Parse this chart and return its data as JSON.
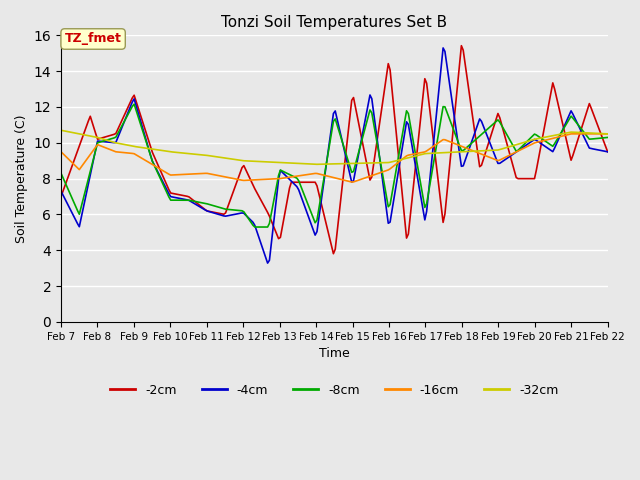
{
  "title": "Tonzi Soil Temperatures Set B",
  "xlabel": "Time",
  "ylabel": "Soil Temperature (C)",
  "ylim": [
    0,
    16
  ],
  "yticks": [
    0,
    2,
    4,
    6,
    8,
    10,
    12,
    14,
    16
  ],
  "x_label_days": [
    7,
    8,
    9,
    10,
    11,
    12,
    13,
    14,
    15,
    16,
    17,
    18,
    19,
    20,
    21,
    22
  ],
  "colors": {
    "-2cm": "#cc0000",
    "-4cm": "#0000cc",
    "-8cm": "#00aa00",
    "-16cm": "#ff8800",
    "-32cm": "#cccc00"
  },
  "annotation_text": "TZ_fmet",
  "annotation_color": "#cc0000",
  "annotation_bg": "#ffffcc",
  "grid_color": "#ffffff",
  "bg_color": "#e8e8e8",
  "linewidth": 1.2,
  "xp_2cm": [
    0,
    0.8,
    1.0,
    1.5,
    2.0,
    2.5,
    3.0,
    3.5,
    4.0,
    4.5,
    5.0,
    5.3,
    5.7,
    6.0,
    6.3,
    7.0,
    7.5,
    8.0,
    8.5,
    9.0,
    9.5,
    10.0,
    10.5,
    11.0,
    11.5,
    12.0,
    12.5,
    13.0,
    13.5,
    14.0,
    14.5,
    15.0
  ],
  "yp_2cm": [
    7.0,
    11.5,
    10.2,
    10.5,
    12.7,
    9.5,
    7.2,
    7.0,
    6.2,
    6.0,
    8.8,
    7.5,
    6.0,
    4.5,
    7.8,
    7.8,
    3.6,
    12.8,
    7.7,
    14.7,
    4.3,
    13.9,
    5.3,
    15.7,
    8.5,
    11.7,
    8.0,
    8.0,
    13.4,
    9.0,
    12.2,
    9.5
  ],
  "xp_4cm": [
    0,
    0.5,
    1.0,
    1.5,
    2.0,
    2.5,
    3.0,
    3.5,
    4.0,
    4.5,
    5.0,
    5.3,
    5.7,
    6.0,
    6.5,
    7.0,
    7.5,
    8.0,
    8.5,
    9.0,
    9.5,
    10.0,
    10.5,
    11.0,
    11.5,
    12.0,
    13.0,
    13.5,
    14.0,
    14.5,
    15.0
  ],
  "yp_4cm": [
    7.3,
    5.3,
    10.1,
    10.0,
    12.5,
    9.0,
    7.0,
    6.8,
    6.2,
    5.9,
    6.1,
    5.5,
    3.1,
    8.5,
    7.5,
    4.7,
    12.0,
    7.6,
    12.9,
    5.2,
    11.4,
    5.5,
    15.6,
    8.5,
    11.4,
    8.8,
    10.2,
    9.5,
    11.8,
    9.7,
    9.5
  ],
  "xp_8cm": [
    0,
    0.5,
    1.0,
    1.5,
    2.0,
    2.5,
    3.0,
    3.5,
    4.0,
    4.5,
    5.0,
    5.3,
    5.7,
    6.0,
    6.5,
    7.0,
    7.5,
    8.0,
    8.5,
    9.0,
    9.5,
    10.0,
    10.5,
    11.0,
    12.0,
    12.5,
    13.0,
    13.5,
    14.0,
    14.5,
    15.0
  ],
  "yp_8cm": [
    8.3,
    6.0,
    10.0,
    10.3,
    12.2,
    9.0,
    6.8,
    6.8,
    6.6,
    6.3,
    6.2,
    5.3,
    5.3,
    8.5,
    8.0,
    5.4,
    11.5,
    8.2,
    12.0,
    6.2,
    12.0,
    6.2,
    12.2,
    9.5,
    11.3,
    9.5,
    10.5,
    9.8,
    11.5,
    10.2,
    10.3
  ],
  "xp_16cm": [
    0,
    0.5,
    1.0,
    1.5,
    2.0,
    3.0,
    4.0,
    5.0,
    6.0,
    7.0,
    8.0,
    9.0,
    9.5,
    10.0,
    10.5,
    11.0,
    12.0,
    13.0,
    14.0,
    15.0
  ],
  "yp_16cm": [
    9.5,
    8.5,
    9.9,
    9.5,
    9.4,
    8.2,
    8.3,
    7.9,
    8.0,
    8.3,
    7.8,
    8.5,
    9.3,
    9.5,
    10.2,
    9.8,
    9.0,
    10.0,
    10.5,
    10.5
  ],
  "xp_32cm": [
    0,
    0.5,
    1.0,
    1.5,
    2.0,
    3.0,
    4.0,
    5.0,
    6.0,
    7.0,
    8.0,
    9.0,
    10.0,
    11.0,
    12.0,
    13.0,
    14.0,
    15.0
  ],
  "yp_32cm": [
    10.7,
    10.5,
    10.3,
    10.0,
    9.8,
    9.5,
    9.3,
    9.0,
    8.9,
    8.8,
    8.85,
    8.9,
    9.4,
    9.5,
    9.6,
    10.2,
    10.6,
    10.5
  ]
}
